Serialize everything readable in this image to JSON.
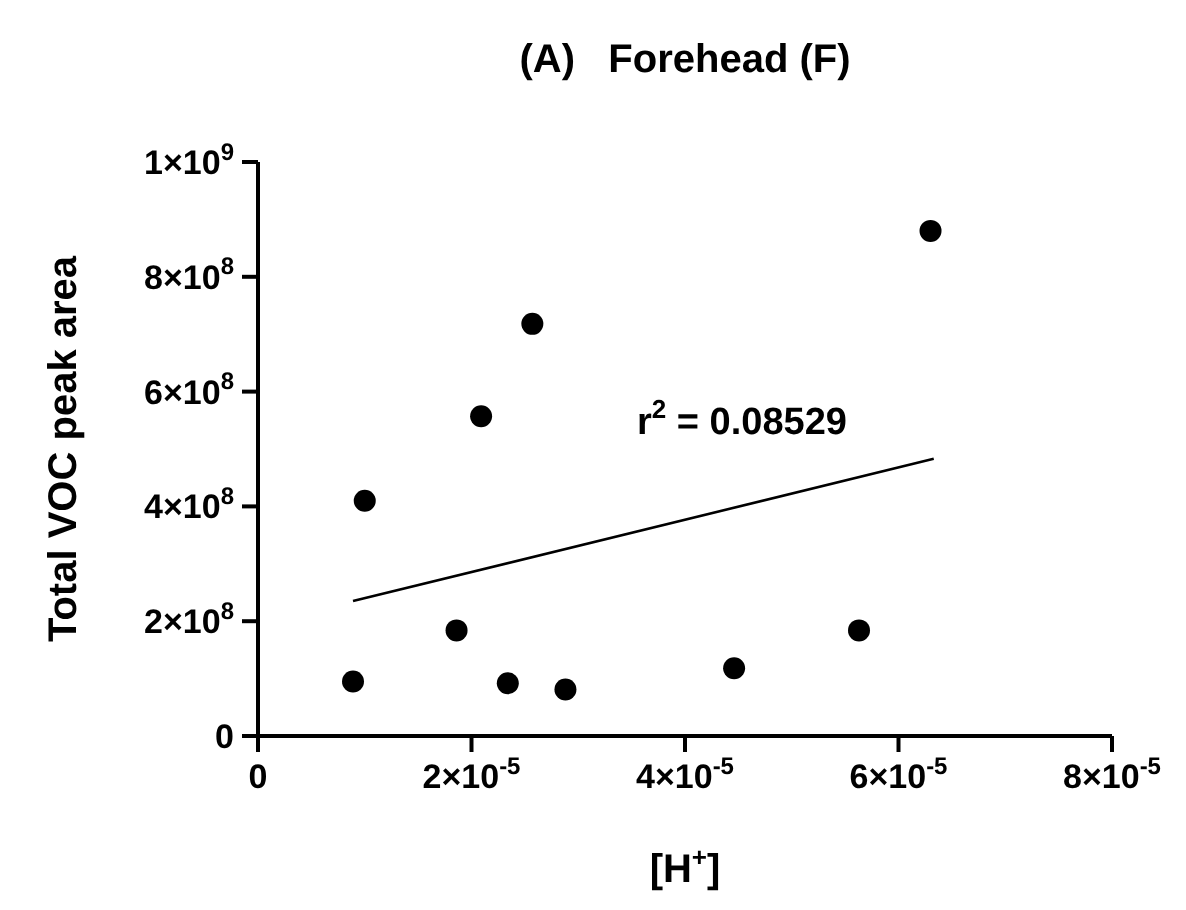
{
  "chart_data": {
    "type": "scatter",
    "title": "(A)   Forehead (F)",
    "xlabel": "[H$^{+}$]",
    "ylabel": "Total VOC peak area",
    "xlim": [
      0,
      8e-05
    ],
    "xticks": [
      0,
      {
        "value": 2e-05,
        "label": "2×10$^{-5}$"
      },
      {
        "value": 4e-05,
        "label": "4×10$^{-5}$"
      },
      {
        "value": 6e-05,
        "label": "6×10$^{-5}$"
      },
      {
        "value": 8e-05,
        "label": "8×10$^{-5}$"
      }
    ],
    "ylim": [
      0,
      1000000000
    ],
    "yticks": [
      0,
      {
        "value": 200000000,
        "label": "2×10$^{8}$"
      },
      {
        "value": 400000000,
        "label": "4×10$^{8}$"
      },
      {
        "value": 600000000,
        "label": "6×10$^{8}$"
      },
      {
        "value": 800000000,
        "label": "8×10$^{8}$"
      },
      {
        "value": 1000000000,
        "label": "1×10$^{9}$"
      }
    ],
    "x": [
      8.9e-06,
      1e-05,
      1.86e-05,
      2.09e-05,
      2.34e-05,
      2.57e-05,
      2.88e-05,
      4.46e-05,
      5.63e-05,
      6.3e-05
    ],
    "series": [
      {
        "color": "#000000",
        "marker": "circle",
        "values": [
          95000000,
          410000000,
          184000000,
          557000000,
          92000000,
          718000000,
          81000000,
          118000000,
          184000000,
          880000000
        ]
      },
      {
        "type": "line",
        "color": "#000000",
        "marker": "none",
        "x": [
          8.9e-06,
          6.33e-05
        ],
        "values": [
          235000000,
          483000000
        ]
      }
    ],
    "annotations": [
      "r$^{2}$ = 0.08529"
    ]
  }
}
